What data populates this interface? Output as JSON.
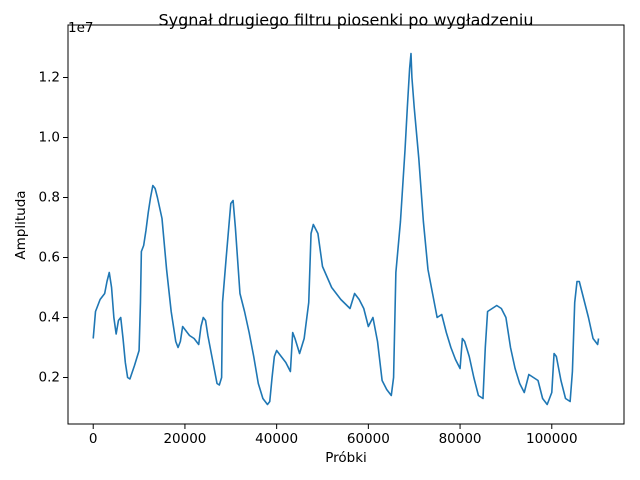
{
  "chart_data": {
    "type": "line",
    "title": "Sygnał drugiego filtru piosenki po wygładzeniu",
    "x_label": "Próbki",
    "y_label": "Amplituda",
    "y_offset_label": "1e7",
    "xlim": [
      -5500,
      115750
    ],
    "ylim": [
      0.045,
      1.375
    ],
    "xticks": [
      0,
      20000,
      40000,
      60000,
      80000,
      100000
    ],
    "yticks": [
      0.2,
      0.4,
      0.6,
      0.8,
      {
        "value": 1.0,
        "label": "1.0"
      },
      1.2
    ],
    "grid": false,
    "series": [
      {
        "color": "#1f77b4",
        "x": [
          0,
          500,
          1500,
          2500,
          3000,
          3500,
          4000,
          4500,
          5000,
          5500,
          6000,
          6500,
          7000,
          7500,
          8000,
          9000,
          10000,
          10300,
          10500,
          11000,
          11500,
          12000,
          12500,
          13000,
          13500,
          14000,
          15000,
          16000,
          17000,
          18000,
          18500,
          19000,
          19500,
          20000,
          21000,
          22000,
          23000,
          23500,
          24000,
          24500,
          25000,
          26000,
          27000,
          27500,
          28000,
          28200,
          29000,
          30000,
          30500,
          31000,
          32000,
          33000,
          34000,
          35000,
          36000,
          37000,
          38000,
          38500,
          39000,
          39500,
          40000,
          41000,
          42000,
          43000,
          43500,
          44000,
          45000,
          46000,
          47000,
          47500,
          48000,
          49000,
          50000,
          52000,
          54000,
          56000,
          57000,
          58000,
          59000,
          60000,
          61000,
          62000,
          63000,
          64000,
          65000,
          65500,
          66000,
          67000,
          68000,
          68500,
          69000,
          69300,
          69500,
          70000,
          71000,
          72000,
          73000,
          74000,
          75000,
          76000,
          77000,
          78000,
          79000,
          80000,
          80500,
          81000,
          82000,
          83000,
          84000,
          85000,
          85500,
          86000,
          87000,
          88000,
          89000,
          90000,
          91000,
          92000,
          93000,
          94000,
          95000,
          96000,
          97000,
          98000,
          99000,
          100000,
          100500,
          101000,
          102000,
          103000,
          104000,
          104500,
          105000,
          105500,
          106000,
          107000,
          108000,
          109000,
          110000,
          110200
        ],
        "values": [
          0.33,
          0.42,
          0.46,
          0.48,
          0.52,
          0.55,
          0.5,
          0.4,
          0.345,
          0.39,
          0.4,
          0.33,
          0.25,
          0.2,
          0.195,
          0.24,
          0.29,
          0.45,
          0.62,
          0.64,
          0.69,
          0.75,
          0.8,
          0.84,
          0.83,
          0.8,
          0.73,
          0.56,
          0.42,
          0.32,
          0.3,
          0.32,
          0.37,
          0.36,
          0.34,
          0.33,
          0.31,
          0.37,
          0.4,
          0.39,
          0.34,
          0.26,
          0.18,
          0.175,
          0.2,
          0.45,
          0.6,
          0.78,
          0.79,
          0.7,
          0.48,
          0.42,
          0.35,
          0.27,
          0.18,
          0.13,
          0.11,
          0.12,
          0.2,
          0.27,
          0.29,
          0.27,
          0.25,
          0.22,
          0.35,
          0.33,
          0.28,
          0.33,
          0.45,
          0.68,
          0.71,
          0.68,
          0.57,
          0.5,
          0.46,
          0.43,
          0.48,
          0.46,
          0.43,
          0.37,
          0.4,
          0.32,
          0.19,
          0.16,
          0.14,
          0.2,
          0.55,
          0.72,
          0.96,
          1.1,
          1.23,
          1.28,
          1.2,
          1.1,
          0.93,
          0.72,
          0.56,
          0.48,
          0.4,
          0.41,
          0.35,
          0.3,
          0.26,
          0.23,
          0.33,
          0.32,
          0.27,
          0.2,
          0.14,
          0.13,
          0.3,
          0.42,
          0.43,
          0.44,
          0.43,
          0.4,
          0.3,
          0.23,
          0.18,
          0.15,
          0.21,
          0.2,
          0.19,
          0.13,
          0.11,
          0.15,
          0.28,
          0.27,
          0.19,
          0.13,
          0.12,
          0.22,
          0.45,
          0.52,
          0.52,
          0.46,
          0.4,
          0.33,
          0.31,
          0.33
        ]
      }
    ]
  }
}
